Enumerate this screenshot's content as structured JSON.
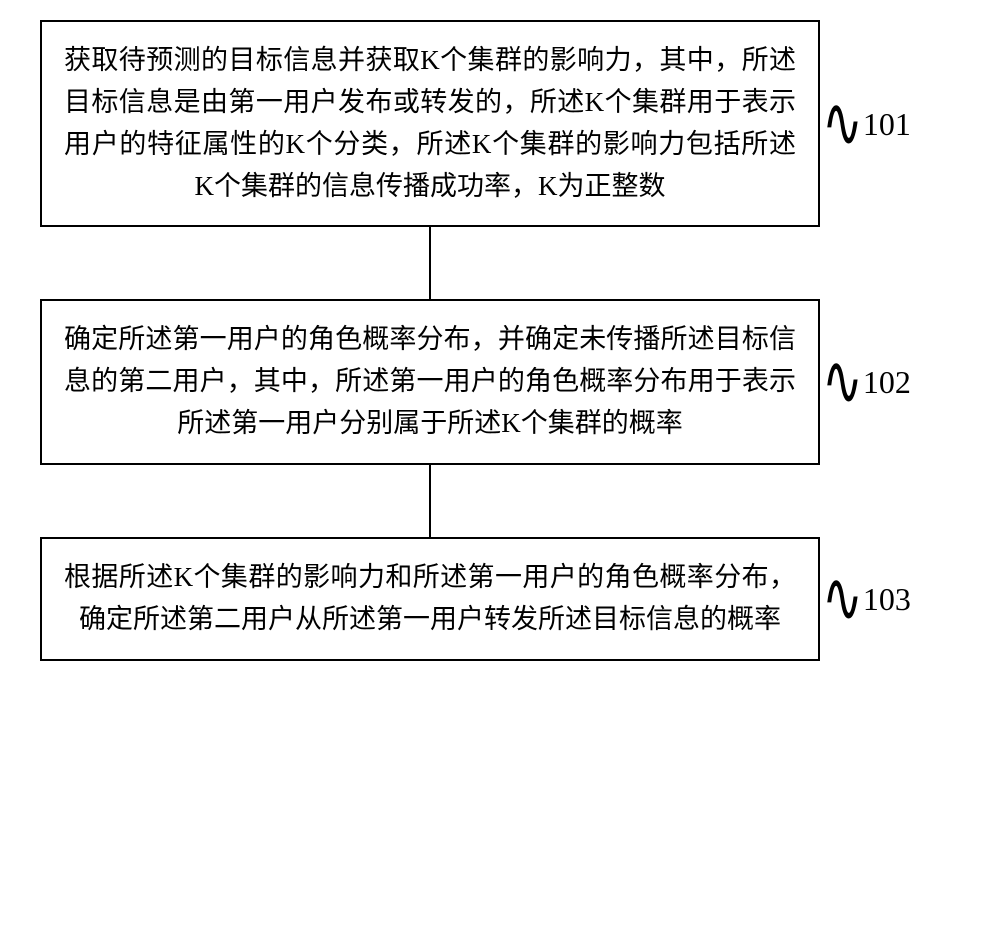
{
  "flowchart": {
    "type": "flowchart-vertical",
    "background_color": "#ffffff",
    "box_border_color": "#000000",
    "box_border_width": 2.5,
    "connector_color": "#000000",
    "connector_width": 2.5,
    "connector_height": 72,
    "text_fontsize": 27,
    "label_fontsize": 32,
    "tilde_fontsize": 44,
    "steps": [
      {
        "id": "101",
        "text": "获取待预测的目标信息并获取K个集群的影响力，其中，所述目标信息是由第一用户发布或转发的，所述K个集群用于表示用户的特征属性的K个分类，所述K个集群的影响力包括所述K个集群的信息传播成功率，K为正整数"
      },
      {
        "id": "102",
        "text": "确定所述第一用户的角色概率分布，并确定未传播所述目标信息的第二用户，其中，所述第一用户的角色概率分布用于表示所述第一用户分别属于所述K个集群的概率"
      },
      {
        "id": "103",
        "text": "根据所述K个集群的影响力和所述第一用户的角色概率分布，确定所述第二用户从所述第一用户转发所述目标信息的概率"
      }
    ]
  }
}
